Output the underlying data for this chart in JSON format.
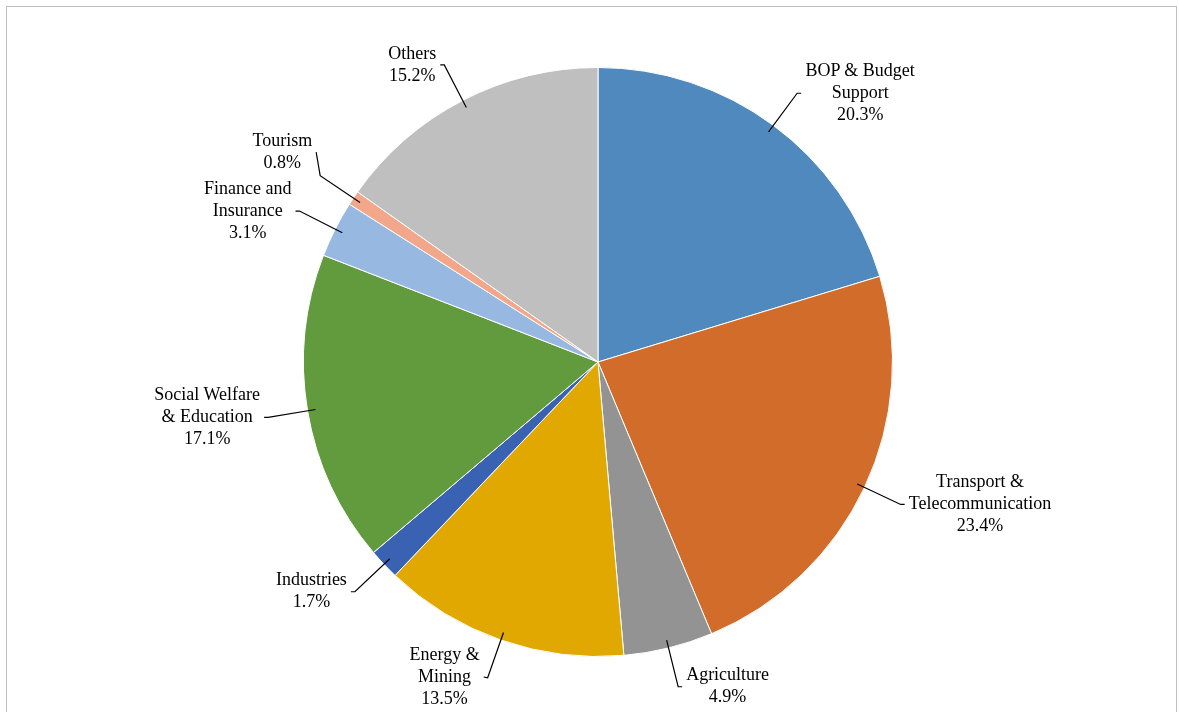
{
  "chart_data": {
    "type": "pie",
    "categories": [
      "BOP & Budget Support",
      "Transport & Telecommunication",
      "Agriculture",
      "Energy & Mining",
      "Industries",
      "Social Welfare & Education",
      "Finance and Insurance",
      "Tourism",
      "Others"
    ],
    "values": [
      20.3,
      23.4,
      4.9,
      13.5,
      1.7,
      17.1,
      3.1,
      0.8,
      15.2
    ],
    "colors": [
      "#4f89bd",
      "#d26c2b",
      "#939393",
      "#e0a800",
      "#3a62b3",
      "#629a3e",
      "#97b8e0",
      "#f2a68a",
      "#bfbfbf"
    ],
    "value_labels": [
      "20.3%",
      "23.4%",
      "4.9%",
      "13.5%",
      "1.7%",
      "17.1%",
      "3.1%",
      "0.8%",
      "15.2%"
    ],
    "legend": false
  }
}
